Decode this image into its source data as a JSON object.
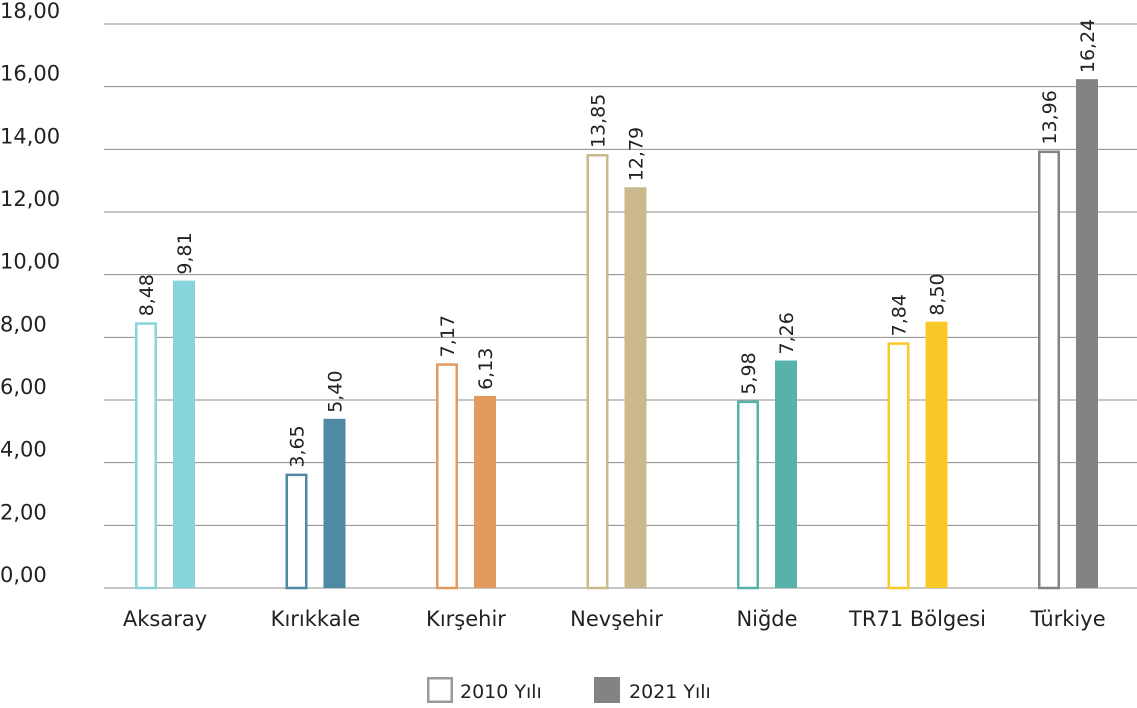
{
  "chart_data": {
    "type": "bar",
    "categories": [
      "Aksaray",
      "Kırıkkale",
      "Kırşehir",
      "Nevşehir",
      "Niğde",
      "TR71 Bölgesi",
      "Türkiye"
    ],
    "series": [
      {
        "name": "2010 Yılı",
        "values": [
          8.48,
          3.65,
          7.17,
          13.85,
          5.98,
          7.84,
          13.96
        ],
        "labels": [
          "8,48",
          "3,65",
          "7,17",
          "13,85",
          "5,98",
          "7,84",
          "13,96"
        ],
        "style": "outline"
      },
      {
        "name": "2021 Yılı",
        "values": [
          9.81,
          5.4,
          6.13,
          12.79,
          7.26,
          8.5,
          16.24
        ],
        "labels": [
          "9,81",
          "5,40",
          "6,13",
          "12,79",
          "7,26",
          "8,50",
          "16,24"
        ],
        "style": "filled"
      }
    ],
    "category_colors": [
      "#86d5da",
      "#4e8aa3",
      "#e39a5f",
      "#cbb88c",
      "#57b2aa",
      "#fac929",
      "#838385"
    ],
    "legend_colors": {
      "outline": "#9a9a9a",
      "filled": "#838385"
    },
    "ylim": [
      0,
      18
    ],
    "y_ticks": [
      "0,00",
      "2,00",
      "4,00",
      "6,00",
      "8,00",
      "10,00",
      "12,00",
      "14,00",
      "16,00",
      "18,00"
    ],
    "grid": true,
    "legend_position": "bottom-center"
  }
}
